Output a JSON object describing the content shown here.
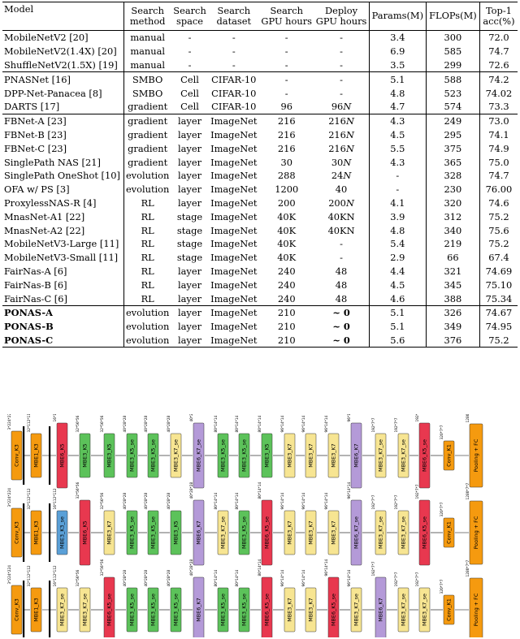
{
  "table": {
    "headers": [
      [
        "Model"
      ],
      [
        "Search",
        "method"
      ],
      [
        "Search",
        "space"
      ],
      [
        "Search",
        "dataset"
      ],
      [
        "Search",
        "GPU hours"
      ],
      [
        "Deploy",
        "GPU hours"
      ],
      [
        "Params(M)"
      ],
      [
        "FLOPs(M)"
      ],
      [
        "Top-1",
        "acc(%)"
      ]
    ],
    "groups": [
      {
        "rows": [
          [
            "MobileNetV2 [20]",
            "manual",
            "-",
            "-",
            "-",
            "-",
            "3.4",
            "300",
            "72.0"
          ],
          [
            "MobileNetV2(1.4X) [20]",
            "manual",
            "-",
            "-",
            "-",
            "-",
            "6.9",
            "585",
            "74.7"
          ],
          [
            "ShuffleNetV2(1.5X) [19]",
            "manual",
            "-",
            "-",
            "-",
            "-",
            "3.5",
            "299",
            "72.6"
          ]
        ]
      },
      {
        "rows": [
          [
            "PNASNet [16]",
            "SMBO",
            "Cell",
            "CIFAR-10",
            "-",
            "-",
            "5.1",
            "588",
            "74.2"
          ],
          [
            "DPP-Net-Panacea [8]",
            "SMBO",
            "Cell",
            "CIFAR-10",
            "-",
            "-",
            "4.8",
            "523",
            "74.02"
          ],
          [
            "DARTS [17]",
            "gradient",
            "Cell",
            "CIFAR-10",
            "96",
            "96N",
            "4.7",
            "574",
            "73.3"
          ]
        ]
      },
      {
        "rows": [
          [
            "FBNet-A [23]",
            "gradient",
            "layer",
            "ImageNet",
            "216",
            "216N",
            "4.3",
            "249",
            "73.0"
          ],
          [
            "FBNet-B [23]",
            "gradient",
            "layer",
            "ImageNet",
            "216",
            "216N",
            "4.5",
            "295",
            "74.1"
          ],
          [
            "FBNet-C [23]",
            "gradient",
            "layer",
            "ImageNet",
            "216",
            "216N",
            "5.5",
            "375",
            "74.9"
          ],
          [
            "SinglePath NAS [21]",
            "gradient",
            "layer",
            "ImageNet",
            "30",
            "30N",
            "4.3",
            "365",
            "75.0"
          ],
          [
            "SinglePath OneShot [10]",
            "evolution",
            "layer",
            "ImageNet",
            "288",
            "24N",
            "-",
            "328",
            "74.7"
          ],
          [
            "OFA w/ PS [3]",
            "evolution",
            "layer",
            "ImageNet",
            "1200",
            "40",
            "-",
            "230",
            "76.00"
          ],
          [
            "ProxylessNAS-R [4]",
            "RL",
            "layer",
            "ImageNet",
            "200",
            "200N",
            "4.1",
            "320",
            "74.6"
          ],
          [
            "MnasNet-A1 [22]",
            "RL",
            "stage",
            "ImageNet",
            "40K",
            "40KN",
            "3.9",
            "312",
            "75.2"
          ],
          [
            "MnasNet-A2 [22]",
            "RL",
            "stage",
            "ImageNet",
            "40K",
            "40KN",
            "4.8",
            "340",
            "75.6"
          ],
          [
            "MobileNetV3-Large [11]",
            "RL",
            "stage",
            "ImageNet",
            "40K",
            "-",
            "5.4",
            "219",
            "75.2"
          ],
          [
            "MobileNetV3-Small [11]",
            "RL",
            "stage",
            "ImageNet",
            "40K",
            "-",
            "2.9",
            "66",
            "67.4"
          ],
          [
            "FairNas-A [6]",
            "RL",
            "layer",
            "ImageNet",
            "240",
            "48",
            "4.4",
            "321",
            "74.69"
          ],
          [
            "FairNas-B [6]",
            "RL",
            "layer",
            "ImageNet",
            "240",
            "48",
            "4.5",
            "345",
            "75.10"
          ],
          [
            "FairNas-C [6]",
            "RL",
            "layer",
            "ImageNet",
            "240",
            "48",
            "4.6",
            "388",
            "75.34"
          ]
        ]
      },
      {
        "bold": true,
        "rows": [
          [
            "PONAS-A",
            "evolution",
            "layer",
            "ImageNet",
            "210",
            "~ 0",
            "5.1",
            "326",
            "74.67"
          ],
          [
            "PONAS-B",
            "evolution",
            "layer",
            "ImageNet",
            "210",
            "~ 0",
            "5.1",
            "349",
            "74.95"
          ],
          [
            "PONAS-C",
            "evolution",
            "layer",
            "ImageNet",
            "210",
            "~ 0",
            "5.6",
            "376",
            "75.2"
          ]
        ]
      }
    ]
  },
  "diagram": {
    "colors": {
      "conv": "#f59a0f",
      "mbe1": "#f59a0f",
      "mbe3_k3": "#5aa0d8",
      "mbe3_k5": "#5cc25a",
      "mbe3_k7": "#f7e592",
      "mbe6_k3": "#5b6fe0",
      "mbe6_k5": "#e8384f",
      "mbe6_k7": "#b49ad8",
      "pool": "#f59a0f"
    },
    "rows": [
      {
        "blocks": [
          {
            "label": "Conv_K3",
            "type": "conv",
            "dim": "3*224*224"
          },
          {
            "label": "MBE1_K3",
            "type": "mbe1",
            "dim": "32*112*112"
          },
          {
            "label": "MBE6_K5",
            "type": "mbe6_k5",
            "dim": "16*112*112"
          },
          {
            "label": "MBE3_K5",
            "type": "mbe3_k5",
            "dim": "32*56*56"
          },
          {
            "label": "MBE3_K5",
            "type": "mbe3_k5",
            "dim": "32*56*56"
          },
          {
            "label": "MBE3_K5_se",
            "type": "mbe3_k5",
            "dim": "40*28*28"
          },
          {
            "label": "MBE3_K5_se",
            "type": "mbe3_k5",
            "dim": "40*28*28"
          },
          {
            "label": "MBE3_K7_se",
            "type": "mbe3_k7",
            "dim": "40*28*28"
          },
          {
            "label": "MBE6_K7_se",
            "type": "mbe6_k7",
            "dim": "40*28*28"
          },
          {
            "label": "MBE3_K5_se",
            "type": "mbe3_k5",
            "dim": "80*14*14"
          },
          {
            "label": "MBE3_K5_se",
            "type": "mbe3_k5",
            "dim": "80*14*14"
          },
          {
            "label": "MBE3_K5",
            "type": "mbe3_k5",
            "dim": "80*14*14"
          },
          {
            "label": "MBE3_K7",
            "type": "mbe3_k7",
            "dim": "96*14*14"
          },
          {
            "label": "MBE3_K7",
            "type": "mbe3_k7",
            "dim": "96*14*14"
          },
          {
            "label": "MBE3_K7",
            "type": "mbe3_k7",
            "dim": "96*14*14"
          },
          {
            "label": "MBE6_K7",
            "type": "mbe6_k7",
            "dim": "96*14*14"
          },
          {
            "label": "MBE3_K7_se",
            "type": "mbe3_k7",
            "dim": "192*7*7"
          },
          {
            "label": "MBE3_K7_se",
            "type": "mbe3_k7",
            "dim": "192*7*7"
          },
          {
            "label": "MBE6_K5_se",
            "type": "mbe6_k5",
            "dim": "192*7*7"
          },
          {
            "label": "Conv_K1",
            "type": "conv",
            "dim": "320*7*7"
          },
          {
            "label": "Pooling + FC",
            "type": "pool",
            "dim": "1280*7*7"
          }
        ]
      },
      {
        "blocks": [
          {
            "label": "Conv_K3",
            "type": "conv",
            "dim": "3*224*224"
          },
          {
            "label": "MBE1_K3",
            "type": "mbe1",
            "dim": "32*112*112"
          },
          {
            "label": "MBE3_K3_se",
            "type": "mbe3_k3",
            "dim": "16*112*112"
          },
          {
            "label": "MBE6_K5",
            "type": "mbe6_k5",
            "dim": "32*56*56"
          },
          {
            "label": "MBE3_K7",
            "type": "mbe3_k7",
            "dim": "32*56*56"
          },
          {
            "label": "MBE3_K5_se",
            "type": "mbe3_k5",
            "dim": "40*28*28"
          },
          {
            "label": "MBE3_K5_se",
            "type": "mbe3_k5",
            "dim": "40*28*28"
          },
          {
            "label": "MBE3_K5",
            "type": "mbe3_k5",
            "dim": "40*28*28"
          },
          {
            "label": "MBE6_K7",
            "type": "mbe6_k7",
            "dim": "40*28*28"
          },
          {
            "label": "MBE3_K7_se",
            "type": "mbe3_k7",
            "dim": "80*14*14"
          },
          {
            "label": "MBE3_K5_se",
            "type": "mbe3_k5",
            "dim": "80*14*14"
          },
          {
            "label": "MBE6_K5_se",
            "type": "mbe6_k5",
            "dim": "80*14*14"
          },
          {
            "label": "MBE3_K7",
            "type": "mbe3_k7",
            "dim": "96*14*14"
          },
          {
            "label": "MBE3_K7",
            "type": "mbe3_k7",
            "dim": "96*14*14"
          },
          {
            "label": "MBE3_K7",
            "type": "mbe3_k7",
            "dim": "96*14*14"
          },
          {
            "label": "MBE6_K7_se",
            "type": "mbe6_k7",
            "dim": "96*14*14"
          },
          {
            "label": "MBE3_K7_se",
            "type": "mbe3_k7",
            "dim": "192*7*7"
          },
          {
            "label": "MBE3_K7_se",
            "type": "mbe3_k7",
            "dim": "192*7*7"
          },
          {
            "label": "MBE6_K5_se",
            "type": "mbe6_k5",
            "dim": "192*7*7"
          },
          {
            "label": "Conv_K1",
            "type": "conv",
            "dim": "320*7*7"
          },
          {
            "label": "Pooling + FC",
            "type": "pool",
            "dim": "1280*7*7"
          }
        ]
      },
      {
        "blocks": [
          {
            "label": "Conv_K3",
            "type": "conv",
            "dim": "3*224*224"
          },
          {
            "label": "MBE1_K3",
            "type": "mbe1",
            "dim": "32*112*112"
          },
          {
            "label": "MBE3_K7_se",
            "type": "mbe3_k7",
            "dim": "16*112*112"
          },
          {
            "label": "MBE3_K7_se",
            "type": "mbe3_k7",
            "dim": "32*56*56"
          },
          {
            "label": "MBE6_K5_se",
            "type": "mbe6_k5",
            "dim": "32*56*56"
          },
          {
            "label": "MBE3_K5_se",
            "type": "mbe3_k5",
            "dim": "40*28*28"
          },
          {
            "label": "MBE3_K5_se",
            "type": "mbe3_k5",
            "dim": "40*28*28"
          },
          {
            "label": "MBE3_K5_se",
            "type": "mbe3_k5",
            "dim": "40*28*28"
          },
          {
            "label": "MBE6_K7",
            "type": "mbe6_k7",
            "dim": "40*28*28"
          },
          {
            "label": "MBE3_K5_se",
            "type": "mbe3_k5",
            "dim": "80*14*14"
          },
          {
            "label": "MBE3_K5_se",
            "type": "mbe3_k5",
            "dim": "80*14*14"
          },
          {
            "label": "MBE6_K5_se",
            "type": "mbe6_k5",
            "dim": "80*14*14"
          },
          {
            "label": "MBE3_K7",
            "type": "mbe3_k7",
            "dim": "96*14*14"
          },
          {
            "label": "MBE3_K7",
            "type": "mbe3_k7",
            "dim": "96*14*14"
          },
          {
            "label": "MBE6_K5_se",
            "type": "mbe6_k5",
            "dim": "96*14*14"
          },
          {
            "label": "MBE3_K7_se",
            "type": "mbe3_k7",
            "dim": "96*14*14"
          },
          {
            "label": "MBE6_K7",
            "type": "mbe6_k7",
            "dim": "192*7*7"
          },
          {
            "label": "MBE3_K7_se",
            "type": "mbe3_k7",
            "dim": "192*7*7"
          },
          {
            "label": "MBE3_K7_se",
            "type": "mbe3_k7",
            "dim": "192*7*7"
          },
          {
            "label": "Conv_K1",
            "type": "conv",
            "dim": "320*7*7"
          },
          {
            "label": "Pooling + FC",
            "type": "pool",
            "dim": "1280*7*7"
          }
        ]
      }
    ]
  }
}
